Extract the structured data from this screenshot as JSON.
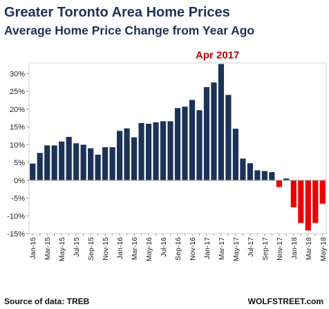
{
  "chart_data": {
    "type": "bar",
    "title": "Greater Toronto Area Home Prices",
    "subtitle": "Average Home Price Change from Year Ago",
    "xlabel": "",
    "ylabel": "",
    "ylim": [
      -15,
      33
    ],
    "y_ticks": [
      30,
      25,
      20,
      15,
      10,
      5,
      0,
      -5,
      -10,
      -15
    ],
    "y_tick_labels": [
      "30%",
      "25%",
      "20%",
      "15%",
      "10%",
      "5%",
      "0%",
      "-5%",
      "-10%",
      "-15%"
    ],
    "categories": [
      "Jan-15",
      "Feb-15",
      "Mar-15",
      "Apr-15",
      "May-15",
      "Jun-15",
      "Jul-15",
      "Aug-15",
      "Sep-15",
      "Oct-15",
      "Nov-15",
      "Dec-15",
      "Jan-16",
      "Feb-16",
      "Mar-16",
      "Apr-16",
      "May-16",
      "Jun-16",
      "Jul-16",
      "Aug-16",
      "Sep-16",
      "Oct-16",
      "Nov-16",
      "Dec-16",
      "Jan-17",
      "Feb-17",
      "Mar-17",
      "Apr-17",
      "May-17",
      "Jun-17",
      "Jul-17",
      "Aug-17",
      "Sep-17",
      "Oct-17",
      "Nov-17",
      "Dec-17",
      "Jan-18",
      "Feb-18",
      "Mar-18",
      "Apr-18",
      "May-18"
    ],
    "x_tick_labels": [
      "Jan-15",
      "",
      "Mar-15",
      "",
      "May-15",
      "",
      "Jul-15",
      "",
      "Sep-15",
      "",
      "Nov-15",
      "",
      "Jan-16",
      "",
      "Mar-16",
      "",
      "May-16",
      "",
      "Jul-16",
      "",
      "Sep-16",
      "",
      "Nov-16",
      "",
      "Jan-17",
      "",
      "Mar-17",
      "",
      "May-17",
      "",
      "Jul-17",
      "",
      "Sep-17",
      "",
      "Nov-17",
      "",
      "Jan-18",
      "",
      "Mar-18",
      "",
      "May-18"
    ],
    "values": [
      4.7,
      7.7,
      9.8,
      9.8,
      10.9,
      12.2,
      10.4,
      10.0,
      9.0,
      7.2,
      9.3,
      9.3,
      13.9,
      14.6,
      12.1,
      16.1,
      15.9,
      16.3,
      16.6,
      16.6,
      20.3,
      20.7,
      22.6,
      19.7,
      26.2,
      27.5,
      32.7,
      24.0,
      14.5,
      6.1,
      4.8,
      2.8,
      2.6,
      2.3,
      -1.9,
      0.5,
      -7.6,
      -12.0,
      -14.1,
      -12.0,
      -6.6
    ],
    "colors": {
      "positive": "#1b3358",
      "negative": "#ee0000"
    },
    "annotation": {
      "text": "Apr 2017",
      "category": "Mar-17"
    },
    "grid": false,
    "legend": "none"
  },
  "footer": {
    "source": "Source of data: TREB",
    "brand": "WOLFSTREET.com"
  }
}
